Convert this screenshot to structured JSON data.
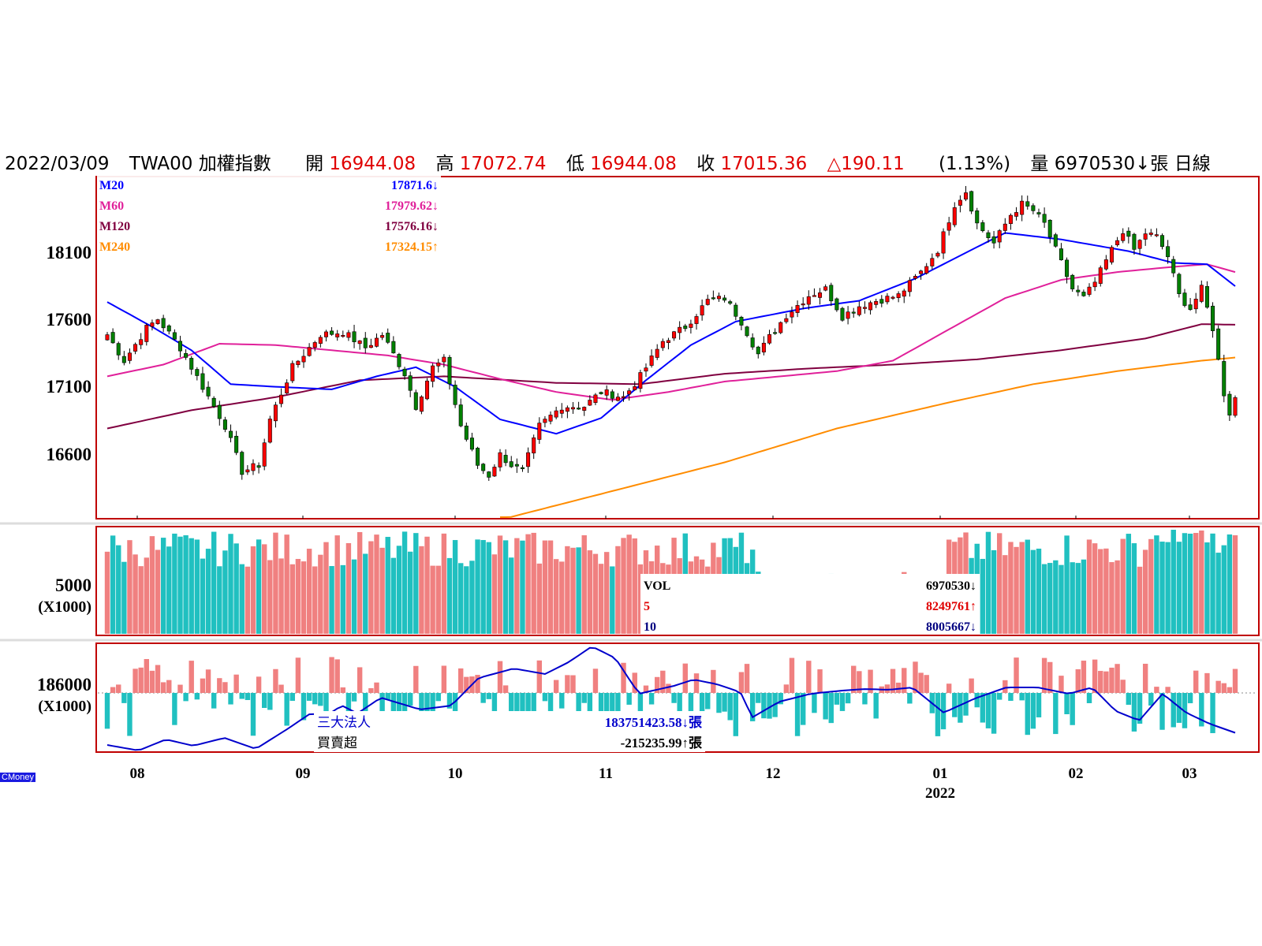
{
  "header": {
    "date": "2022/03/09",
    "symbol": "TWA00",
    "name": "加權指數",
    "open_label": "開",
    "open": "16944.08",
    "high_label": "高",
    "high": "17072.74",
    "low_label": "低",
    "low": "16944.08",
    "close_label": "收",
    "close": "17015.36",
    "change": "△190.11",
    "change_pct": "(1.13%)",
    "volume_label": "量",
    "volume": "6970530↓張",
    "period": "日線"
  },
  "colors": {
    "up": "#ff0000",
    "down": "#008000",
    "vol_up": "#f08080",
    "vol_down": "#20c0c0",
    "m20": "#0000ff",
    "m60": "#e0209a",
    "m120": "#800040",
    "m240": "#ff8c00",
    "border": "#c00000",
    "inst_line": "#0000cc"
  },
  "legend_ma": [
    {
      "name": "M20",
      "value": "17871.6↓"
    },
    {
      "name": "M60",
      "value": "17979.62↓"
    },
    {
      "name": "M120",
      "value": "17576.16↓"
    },
    {
      "name": "M240",
      "value": "17324.15↑"
    }
  ],
  "legend_vol": [
    {
      "name": "VOL",
      "value": "6970530↓"
    },
    {
      "name": "5",
      "value": "8249761↑"
    },
    {
      "name": "10",
      "value": "8005667↓"
    }
  ],
  "legend_inst": [
    {
      "name": "三大法人",
      "value": "183751423.58↓張"
    },
    {
      "name": "買賣超",
      "value": "-215235.99↑張"
    }
  ],
  "axis": {
    "price_ticks": [
      "18100",
      "17600",
      "17100",
      "16600"
    ],
    "vol_tick": "5000",
    "vol_unit": "(X1000)",
    "inst_tick": "186000",
    "inst_unit": "(X1000)",
    "months": [
      "08",
      "09",
      "10",
      "11",
      "12",
      "01",
      "02",
      "03"
    ],
    "year": "2022"
  },
  "watermark": "CMoney",
  "chart_data": {
    "type": "candlestick",
    "period": "daily",
    "ylim": [
      16100,
      18700
    ],
    "y_ticks": [
      16600,
      17100,
      17600,
      18100
    ],
    "x_month_labels": [
      "08",
      "09",
      "10",
      "11",
      "12",
      "01",
      "02",
      "03"
    ],
    "anchors": {
      "candles": [
        [
          0,
          17500
        ],
        [
          3,
          17300
        ],
        [
          7,
          17550
        ],
        [
          9,
          17620
        ],
        [
          13,
          17400
        ],
        [
          17,
          17100
        ],
        [
          21,
          16800
        ],
        [
          24,
          16450
        ],
        [
          27,
          16500
        ],
        [
          29,
          16850
        ],
        [
          33,
          17250
        ],
        [
          38,
          17500
        ],
        [
          42,
          17520
        ],
        [
          46,
          17400
        ],
        [
          49,
          17500
        ],
        [
          53,
          17200
        ],
        [
          55,
          16950
        ],
        [
          58,
          17250
        ],
        [
          60,
          17300
        ],
        [
          63,
          16800
        ],
        [
          66,
          16500
        ],
        [
          68,
          16420
        ],
        [
          70,
          16580
        ],
        [
          72,
          16500
        ],
        [
          74,
          16450
        ],
        [
          77,
          16800
        ],
        [
          81,
          16950
        ],
        [
          85,
          16950
        ],
        [
          88,
          17060
        ],
        [
          92,
          17020
        ],
        [
          95,
          17180
        ],
        [
          99,
          17450
        ],
        [
          103,
          17560
        ],
        [
          107,
          17760
        ],
        [
          110,
          17780
        ],
        [
          113,
          17600
        ],
        [
          116,
          17350
        ],
        [
          118,
          17480
        ],
        [
          121,
          17650
        ],
        [
          125,
          17800
        ],
        [
          128,
          17850
        ],
        [
          131,
          17640
        ],
        [
          134,
          17720
        ],
        [
          137,
          17760
        ],
        [
          141,
          17800
        ],
        [
          145,
          17980
        ],
        [
          148,
          18150
        ],
        [
          151,
          18500
        ],
        [
          153,
          18600
        ],
        [
          155,
          18350
        ],
        [
          158,
          18200
        ],
        [
          161,
          18420
        ],
        [
          163,
          18500
        ],
        [
          165,
          18450
        ],
        [
          167,
          18350
        ],
        [
          170,
          18050
        ],
        [
          172,
          17850
        ],
        [
          174,
          17780
        ],
        [
          176,
          17900
        ],
        [
          179,
          18150
        ],
        [
          181,
          18300
        ],
        [
          183,
          18150
        ],
        [
          185,
          18280
        ],
        [
          187,
          18250
        ],
        [
          189,
          18100
        ],
        [
          191,
          17800
        ],
        [
          193,
          17700
        ],
        [
          195,
          17850
        ],
        [
          197,
          17550
        ],
        [
          199,
          17050
        ],
        [
          200,
          16900
        ],
        [
          201,
          17015.36
        ]
      ],
      "ma20": [
        [
          0,
          17750
        ],
        [
          8,
          17560
        ],
        [
          15,
          17380
        ],
        [
          22,
          17120
        ],
        [
          30,
          17100
        ],
        [
          40,
          17080
        ],
        [
          48,
          17180
        ],
        [
          55,
          17250
        ],
        [
          62,
          17100
        ],
        [
          70,
          16850
        ],
        [
          80,
          16740
        ],
        [
          88,
          16860
        ],
        [
          96,
          17150
        ],
        [
          104,
          17420
        ],
        [
          112,
          17600
        ],
        [
          124,
          17700
        ],
        [
          134,
          17760
        ],
        [
          144,
          17930
        ],
        [
          154,
          18150
        ],
        [
          160,
          18280
        ],
        [
          170,
          18230
        ],
        [
          182,
          18140
        ],
        [
          190,
          18050
        ],
        [
          196,
          18040
        ],
        [
          201,
          17871.6
        ]
      ],
      "ma60": [
        [
          0,
          17180
        ],
        [
          10,
          17270
        ],
        [
          20,
          17430
        ],
        [
          30,
          17420
        ],
        [
          40,
          17380
        ],
        [
          50,
          17340
        ],
        [
          60,
          17270
        ],
        [
          70,
          17160
        ],
        [
          80,
          17060
        ],
        [
          90,
          17000
        ],
        [
          100,
          17060
        ],
        [
          110,
          17140
        ],
        [
          120,
          17180
        ],
        [
          130,
          17220
        ],
        [
          140,
          17300
        ],
        [
          150,
          17540
        ],
        [
          160,
          17780
        ],
        [
          170,
          17920
        ],
        [
          180,
          17980
        ],
        [
          190,
          18020
        ],
        [
          196,
          18040
        ],
        [
          201,
          17979.62
        ]
      ],
      "ma120": [
        [
          0,
          16780
        ],
        [
          15,
          16920
        ],
        [
          30,
          17020
        ],
        [
          45,
          17150
        ],
        [
          60,
          17180
        ],
        [
          80,
          17130
        ],
        [
          95,
          17120
        ],
        [
          110,
          17200
        ],
        [
          125,
          17240
        ],
        [
          140,
          17270
        ],
        [
          155,
          17310
        ],
        [
          170,
          17380
        ],
        [
          185,
          17470
        ],
        [
          195,
          17580
        ],
        [
          201,
          17576.16
        ]
      ],
      "ma240": [
        [
          70,
          16080
        ],
        [
          90,
          16300
        ],
        [
          110,
          16520
        ],
        [
          130,
          16780
        ],
        [
          150,
          16980
        ],
        [
          165,
          17120
        ],
        [
          180,
          17220
        ],
        [
          195,
          17300
        ],
        [
          201,
          17324.15
        ]
      ]
    },
    "count": 202,
    "month_start_index": [
      6,
      27,
      49,
      70,
      93,
      117,
      136,
      152
    ]
  }
}
